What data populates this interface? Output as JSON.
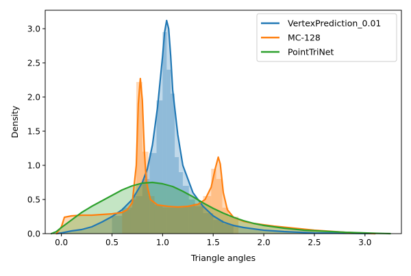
{
  "chart_data": {
    "type": "area",
    "title": "",
    "xlabel": "Triangle angles",
    "ylabel": "Density",
    "xlim": [
      -0.16,
      3.36
    ],
    "ylim": [
      0,
      3.27
    ],
    "x_ticks": [
      0.0,
      0.5,
      1.0,
      1.5,
      2.0,
      2.5,
      3.0
    ],
    "x_tick_labels": [
      "0.0",
      "0.5",
      "1.0",
      "1.5",
      "2.0",
      "2.5",
      "3.0"
    ],
    "y_ticks": [
      0.0,
      0.5,
      1.0,
      1.5,
      2.0,
      2.5,
      3.0
    ],
    "y_tick_labels": [
      "0.0",
      "0.5",
      "1.0",
      "1.5",
      "2.0",
      "2.5",
      "3.0"
    ],
    "grid": false,
    "legend_position": "top-right",
    "series": [
      {
        "name": "VertexPrediction_0.01",
        "color": "#1f77b4",
        "kde": {
          "x": [
            -0.05,
            0.0,
            0.1,
            0.2,
            0.3,
            0.4,
            0.5,
            0.6,
            0.7,
            0.8,
            0.85,
            0.9,
            0.95,
            1.0,
            1.02,
            1.04,
            1.06,
            1.08,
            1.1,
            1.15,
            1.2,
            1.3,
            1.4,
            1.5,
            1.6,
            1.7,
            1.8,
            2.0,
            2.2,
            2.5,
            2.8,
            3.1
          ],
          "y": [
            0.0,
            0.01,
            0.04,
            0.06,
            0.1,
            0.17,
            0.25,
            0.35,
            0.5,
            0.75,
            0.95,
            1.3,
            1.85,
            2.6,
            2.95,
            3.12,
            3.0,
            2.6,
            2.1,
            1.45,
            1.0,
            0.6,
            0.4,
            0.26,
            0.17,
            0.12,
            0.09,
            0.05,
            0.03,
            0.01,
            0.005,
            0.0
          ]
        },
        "hist": {
          "edges": [
            0.5,
            0.6,
            0.7,
            0.8,
            0.87,
            0.94,
            1.0,
            1.04,
            1.08,
            1.12,
            1.16,
            1.2,
            1.26,
            1.32,
            1.4,
            1.5,
            1.6,
            1.7
          ],
          "values": [
            0.26,
            0.38,
            0.55,
            0.8,
            1.18,
            1.95,
            2.95,
            2.4,
            2.05,
            1.12,
            0.9,
            0.7,
            0.5,
            0.4,
            0.3,
            0.2,
            0.14
          ]
        }
      },
      {
        "name": "MC-128",
        "color": "#ff7f0e",
        "kde": {
          "x": [
            -0.05,
            0.0,
            0.03,
            0.1,
            0.2,
            0.3,
            0.4,
            0.5,
            0.6,
            0.65,
            0.7,
            0.74,
            0.76,
            0.78,
            0.8,
            0.82,
            0.84,
            0.88,
            0.95,
            1.05,
            1.15,
            1.25,
            1.35,
            1.42,
            1.48,
            1.52,
            1.55,
            1.57,
            1.6,
            1.64,
            1.7,
            1.8,
            1.9,
            2.1,
            2.3,
            2.5,
            2.8,
            3.1
          ],
          "y": [
            0.0,
            0.1,
            0.24,
            0.26,
            0.27,
            0.27,
            0.28,
            0.29,
            0.31,
            0.35,
            0.45,
            1.0,
            1.9,
            2.27,
            1.95,
            1.2,
            0.75,
            0.5,
            0.42,
            0.4,
            0.39,
            0.4,
            0.43,
            0.5,
            0.68,
            0.95,
            1.12,
            1.02,
            0.6,
            0.35,
            0.24,
            0.18,
            0.15,
            0.11,
            0.08,
            0.05,
            0.02,
            0.0
          ]
        },
        "hist": {
          "edges": [
            0.6,
            0.68,
            0.74,
            0.8,
            0.86,
            0.92,
            1.0,
            1.1,
            1.2,
            1.3,
            1.4,
            1.48,
            1.53,
            1.59,
            1.65,
            1.75
          ],
          "values": [
            0.35,
            0.5,
            2.22,
            1.2,
            0.55,
            0.42,
            0.38,
            0.38,
            0.4,
            0.44,
            0.55,
            0.95,
            0.8,
            0.38,
            0.25
          ]
        }
      },
      {
        "name": "PointTriNet",
        "color": "#2ca02c",
        "kde": {
          "x": [
            -0.1,
            -0.05,
            0.0,
            0.1,
            0.2,
            0.3,
            0.4,
            0.5,
            0.6,
            0.7,
            0.8,
            0.9,
            1.0,
            1.1,
            1.2,
            1.3,
            1.4,
            1.5,
            1.6,
            1.7,
            1.8,
            1.9,
            2.0,
            2.2,
            2.4,
            2.6,
            2.8,
            3.0,
            3.1,
            3.2,
            3.25
          ],
          "y": [
            0.0,
            0.03,
            0.09,
            0.2,
            0.31,
            0.4,
            0.48,
            0.56,
            0.64,
            0.7,
            0.74,
            0.75,
            0.73,
            0.69,
            0.62,
            0.54,
            0.45,
            0.37,
            0.3,
            0.24,
            0.19,
            0.15,
            0.12,
            0.08,
            0.05,
            0.035,
            0.02,
            0.01,
            0.005,
            0.002,
            0.0
          ]
        }
      }
    ]
  }
}
